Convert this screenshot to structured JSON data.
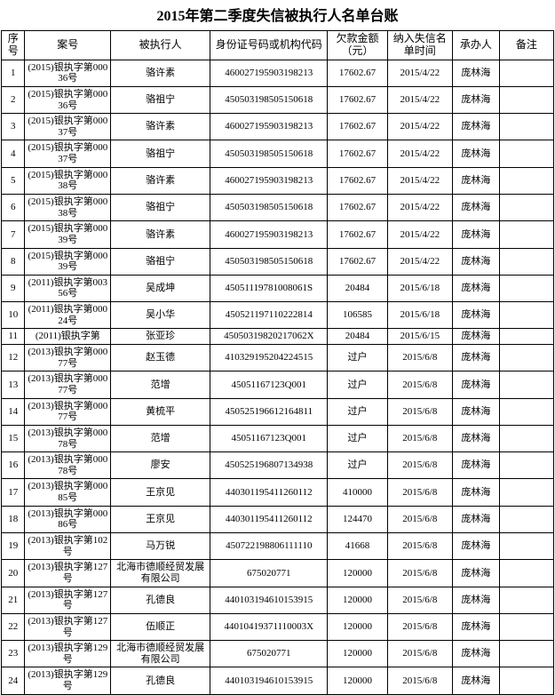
{
  "title": "2015年第二季度失信被执行人名单台账",
  "title_fontsize": 16,
  "header_fontsize": 12,
  "cell_fontsize": 11,
  "columns": [
    "序号",
    "案号",
    "被执行人",
    "身份证号码或机构代码",
    "欠款金额（元）",
    "纳入失信名单时间",
    "承办人",
    "备注"
  ],
  "rows": [
    {
      "seq": "1",
      "case": "(2015)银执字第00036号",
      "name": "骆许素",
      "id": "460027195903198213",
      "amt": "17602.67",
      "date": "2015/4/22",
      "handler": "庞林海",
      "note": ""
    },
    {
      "seq": "2",
      "case": "(2015)银执字第00036号",
      "name": "骆祖宁",
      "id": "450503198505150618",
      "amt": "17602.67",
      "date": "2015/4/22",
      "handler": "庞林海",
      "note": ""
    },
    {
      "seq": "3",
      "case": "(2015)银执字第00037号",
      "name": "骆许素",
      "id": "460027195903198213",
      "amt": "17602.67",
      "date": "2015/4/22",
      "handler": "庞林海",
      "note": ""
    },
    {
      "seq": "4",
      "case": "(2015)银执字第00037号",
      "name": "骆祖宁",
      "id": "450503198505150618",
      "amt": "17602.67",
      "date": "2015/4/22",
      "handler": "庞林海",
      "note": ""
    },
    {
      "seq": "5",
      "case": "(2015)银执字第00038号",
      "name": "骆许素",
      "id": "460027195903198213",
      "amt": "17602.67",
      "date": "2015/4/22",
      "handler": "庞林海",
      "note": ""
    },
    {
      "seq": "6",
      "case": "(2015)银执字第00038号",
      "name": "骆祖宁",
      "id": "450503198505150618",
      "amt": "17602.67",
      "date": "2015/4/22",
      "handler": "庞林海",
      "note": ""
    },
    {
      "seq": "7",
      "case": "(2015)银执字第00039号",
      "name": "骆许素",
      "id": "460027195903198213",
      "amt": "17602.67",
      "date": "2015/4/22",
      "handler": "庞林海",
      "note": ""
    },
    {
      "seq": "8",
      "case": "(2015)银执字第00039号",
      "name": "骆祖宁",
      "id": "450503198505150618",
      "amt": "17602.67",
      "date": "2015/4/22",
      "handler": "庞林海",
      "note": ""
    },
    {
      "seq": "9",
      "case": "(2011)银执字第00356号",
      "name": "吴成坤",
      "id": "45051119781008061S",
      "amt": "20484",
      "date": "2015/6/18",
      "handler": "庞林海",
      "note": ""
    },
    {
      "seq": "10",
      "case": "(2011)银执字第00024号",
      "name": "吴小华",
      "id": "450521197110222814",
      "amt": "106585",
      "date": "2015/6/18",
      "handler": "庞林海",
      "note": ""
    },
    {
      "seq": "11",
      "case": "(2011)银执字第",
      "name": "张亚珍",
      "id": "45050319820217062X",
      "amt": "20484",
      "date": "2015/6/15",
      "handler": "庞林海",
      "note": ""
    },
    {
      "seq": "12",
      "case": "(2013)银执字第00077号",
      "name": "赵玉德",
      "id": "410329195204224515",
      "amt": "过户",
      "date": "2015/6/8",
      "handler": "庞林海",
      "note": ""
    },
    {
      "seq": "13",
      "case": "(2013)银执字第00077号",
      "name": "范增",
      "id": "45051167123Q001",
      "amt": "过户",
      "date": "2015/6/8",
      "handler": "庞林海",
      "note": ""
    },
    {
      "seq": "14",
      "case": "(2013)银执字第00077号",
      "name": "黄梳平",
      "id": "450525196612164811",
      "amt": "过户",
      "date": "2015/6/8",
      "handler": "庞林海",
      "note": ""
    },
    {
      "seq": "15",
      "case": "(2013)银执字第00078号",
      "name": "范增",
      "id": "45051167123Q001",
      "amt": "过户",
      "date": "2015/6/8",
      "handler": "庞林海",
      "note": ""
    },
    {
      "seq": "16",
      "case": "(2013)银执字第00078号",
      "name": "廖安",
      "id": "450525196807134938",
      "amt": "过户",
      "date": "2015/6/8",
      "handler": "庞林海",
      "note": ""
    },
    {
      "seq": "17",
      "case": "(2013)银执字第00085号",
      "name": "王京见",
      "id": "440301195411260112",
      "amt": "410000",
      "date": "2015/6/8",
      "handler": "庞林海",
      "note": ""
    },
    {
      "seq": "18",
      "case": "(2013)银执字第00086号",
      "name": "王京见",
      "id": "440301195411260112",
      "amt": "124470",
      "date": "2015/6/8",
      "handler": "庞林海",
      "note": ""
    },
    {
      "seq": "19",
      "case": "(2013)银执字第102号",
      "name": "马万锐",
      "id": "450722198806111110",
      "amt": "41668",
      "date": "2015/6/8",
      "handler": "庞林海",
      "note": ""
    },
    {
      "seq": "20",
      "case": "(2013)银执字第127号",
      "name": "北海市德顺经贸发展有限公司",
      "id": "675020771",
      "amt": "120000",
      "date": "2015/6/8",
      "handler": "庞林海",
      "note": ""
    },
    {
      "seq": "21",
      "case": "(2013)银执字第127号",
      "name": "孔德良",
      "id": "440103194610153915",
      "amt": "120000",
      "date": "2015/6/8",
      "handler": "庞林海",
      "note": ""
    },
    {
      "seq": "22",
      "case": "(2013)银执字第127号",
      "name": "伍顺正",
      "id": "44010419371110003X",
      "amt": "120000",
      "date": "2015/6/8",
      "handler": "庞林海",
      "note": ""
    },
    {
      "seq": "23",
      "case": "(2013)银执字第129号",
      "name": "北海市德顺经贸发展有限公司",
      "id": "675020771",
      "amt": "120000",
      "date": "2015/6/8",
      "handler": "庞林海",
      "note": ""
    },
    {
      "seq": "24",
      "case": "(2013)银执字第129号",
      "name": "孔德良",
      "id": "440103194610153915",
      "amt": "120000",
      "date": "2015/6/8",
      "handler": "庞林海",
      "note": ""
    }
  ]
}
